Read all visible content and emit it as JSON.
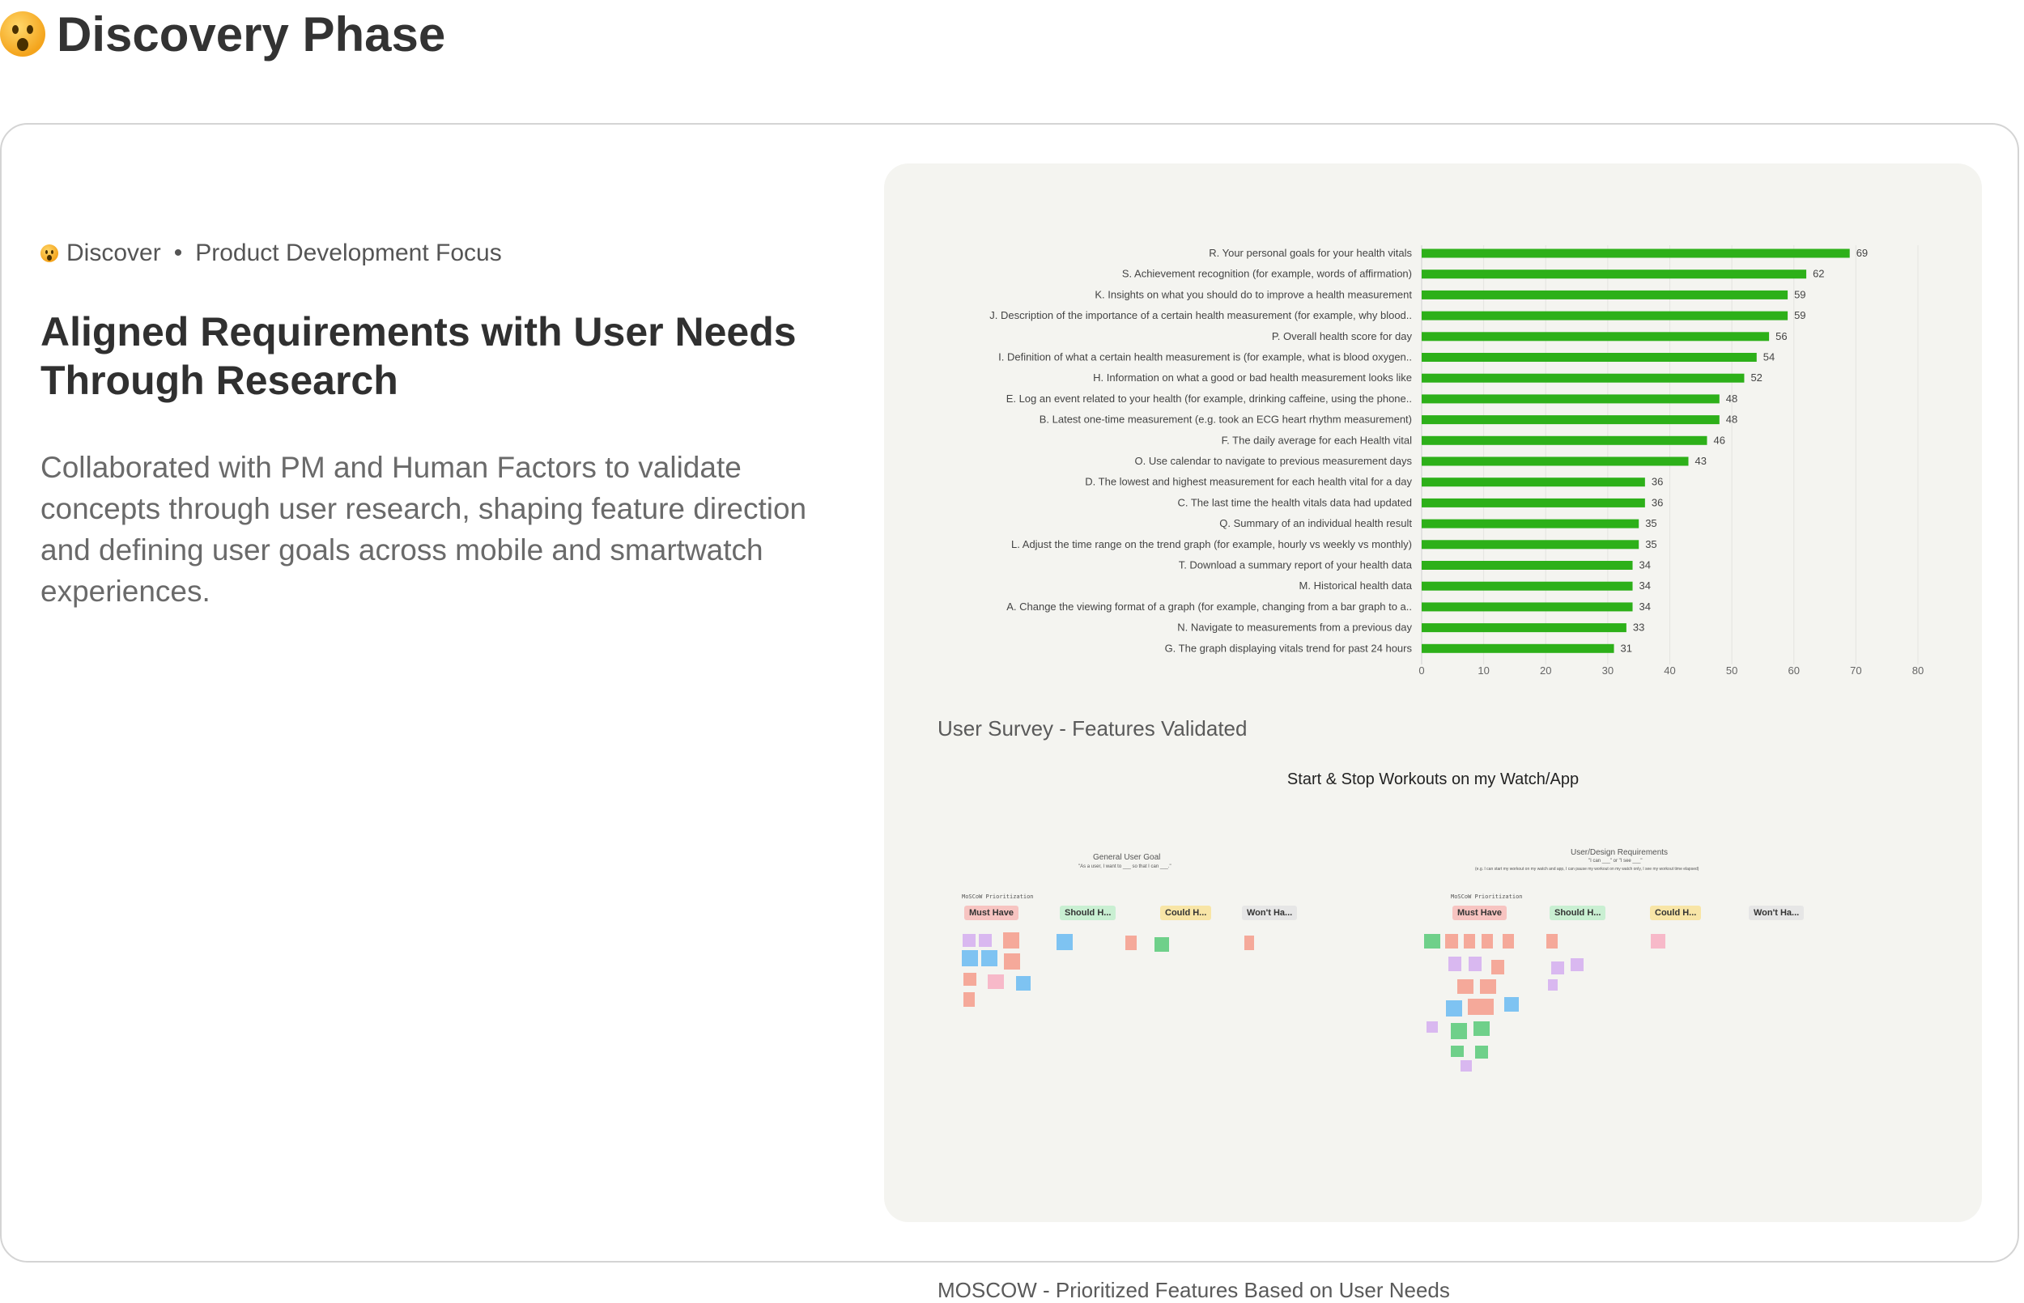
{
  "page": {
    "title": "Discovery Phase"
  },
  "card": {
    "meta": {
      "section": "Discover",
      "separator": "•",
      "focus": "Product Development Focus"
    },
    "headline": "Aligned Requirements with User Needs Through Research",
    "description": "Collaborated with PM and Human Factors to validate concepts through user research, shaping feature direction and defining user goals across mobile and smartwatch experiences."
  },
  "chart_data": {
    "type": "bar",
    "orientation": "horizontal",
    "categories": [
      "R. Your personal goals for your health vitals",
      "S. Achievement recognition (for example, words of affirmation)",
      "K. Insights on what you should do to improve a health measurement",
      "J. Description of the importance of a certain health measurement (for example, why blood..",
      "P. Overall health score for day",
      "I. Definition of what a certain health measurement is (for example, what is blood oxygen..",
      "H. Information on what a good or bad health measurement looks like",
      "E. Log an event related to your health (for example, drinking caffeine, using the phone..",
      "B. Latest one-time measurement (e.g. took an ECG heart rhythm measurement)",
      "F. The daily average for each Health vital",
      "O. Use calendar to navigate to previous measurement days",
      "D. The lowest and highest measurement for each health vital for a day",
      "C. The last time the health vitals data had updated",
      "Q. Summary of an individual health result",
      "L. Adjust the time range on the trend graph (for example, hourly vs weekly vs monthly)",
      "T. Download a summary report of your health data",
      "M. Historical health data",
      "A. Change the viewing format of a graph (for example, changing from a bar graph to a..",
      "N. Navigate to measurements from a previous day",
      "G. The graph displaying vitals trend for past 24 hours"
    ],
    "values": [
      69,
      62,
      59,
      59,
      56,
      54,
      52,
      48,
      48,
      46,
      43,
      36,
      36,
      35,
      35,
      34,
      34,
      34,
      33,
      31
    ],
    "xlim": [
      0,
      80
    ],
    "xticks": [
      0,
      10,
      20,
      30,
      40,
      50,
      60,
      70,
      80
    ],
    "bar_color": "#2db019",
    "grid": true,
    "data_labels": true
  },
  "captions": {
    "survey": "User Survey - Features Validated",
    "moscow": "MOSCOW - Prioritized Features Based on User Needs"
  },
  "board": {
    "title": "Start & Stop Workouts on my Watch/App",
    "left": {
      "heading": "General User Goal",
      "subheading": "\"As a user, I want to ___ so that I can ___.\"",
      "label": "MoSCoW Prioritization",
      "tags": [
        "Must Have",
        "Should H...",
        "Could H...",
        "Won't Ha..."
      ]
    },
    "right": {
      "heading": "User/Design Requirements",
      "subheading": "\"I can ___\" or \"I see ___\"",
      "example": "(e.g. I can start my workout on my watch and app, I can pause my workout on my watch only, I see my workout time elapsed)",
      "label": "MoSCoW Prioritization",
      "tags": [
        "Must Have",
        "Should H...",
        "Could H...",
        "Won't Ha..."
      ]
    },
    "colors": {
      "must": "#f7c4c1",
      "should": "#c9efd2",
      "could": "#f8e5a6",
      "wont": "#e6e6e6"
    }
  }
}
